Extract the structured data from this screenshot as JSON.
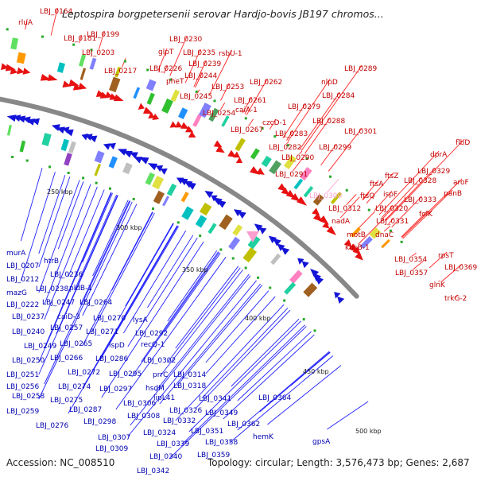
{
  "title": "Leptospira borgpetersenii serovar Hardjo-bovis JB197 chromos...",
  "footer": {
    "accession": "Accession: NC_008510",
    "topology": "Topology: circular;",
    "length": "Length: 3,576,473 bp;",
    "genes": "Genes: 2,687"
  },
  "colors": {
    "forward_strand": "#e81212",
    "reverse_strand": "#1414d8",
    "highlight_gene": "#ff9fd0",
    "backbone": "#888888",
    "label_forward": "#c00000",
    "label_reverse": "#0000b0",
    "label_highlight": "#ff9fd0"
  },
  "scale_ticks": [
    "250 kbp",
    "300 kbp",
    "350 kbp",
    "400 kbp",
    "450 kbp",
    "500 kbp"
  ],
  "forward_genes": [
    "LBJ_0164",
    "rluA",
    "LBJ_0181",
    "LBJ_0199",
    "LBJ_0203",
    "LBJ_0217",
    "LBJ_0230",
    "glpT",
    "LBJ_0235",
    "rsbU-1",
    "LBJ_0226",
    "LBJ_0239",
    "LBJ_0244",
    "pheT",
    "LBJ_0245",
    "LBJ_0253",
    "LBJ_0254",
    "LBJ_0262",
    "LBJ_0261",
    "caiA-1",
    "LBJ_0267",
    "czcD-1",
    "LBJ_0279",
    "nlpD",
    "LBJ_0284",
    "LBJ_0289",
    "LBJ_0288",
    "LBJ_0283",
    "LBJ_0282",
    "LBJ_0290",
    "LBJ_0291",
    "LBJ_0301",
    "LBJ_0299",
    "ftsZ",
    "ftsA",
    "ftsQ",
    "ispF",
    "LBJ_0312",
    "LBJ_0320",
    "nadA",
    "LBJ_0331",
    "motB",
    "dnaC",
    "kdsB-1",
    "LBJ_0354",
    "LBJ_0357",
    "rpsT",
    "LBJ_0369",
    "glnK",
    "trkG-2",
    "flbD",
    "dprA",
    "LBJ_0329",
    "LBJ_0328",
    "aroF",
    "LBJ_0333",
    "panB",
    "folK"
  ],
  "highlight_genes": [
    "LBJ_0300"
  ],
  "reverse_genes": [
    "murA",
    "LBJ_0207",
    "htrB",
    "LBJ_0212",
    "LBJ_0236",
    "mazG",
    "LBJ_0238",
    "pldB-1",
    "LBJ_0222",
    "LBJ_0247",
    "LBJ_0264",
    "LBJ_0237",
    "caiD-3",
    "LBJ_0270",
    "lysA",
    "LBJ_0257",
    "LBJ_0271",
    "LBJ_0292",
    "LBJ_0240",
    "LBJ_0265",
    "ispD",
    "recQ-1",
    "LBJ_0249",
    "LBJ_0266",
    "LBJ_0286",
    "LBJ_0302",
    "LBJ_0250",
    "LBJ_0272",
    "LBJ_0295",
    "prrC",
    "LBJ_0314",
    "LBJ_0251",
    "LBJ_0274",
    "LBJ_0297",
    "hsdM",
    "LBJ_0318",
    "LBJ_0256",
    "LBJ_0258",
    "LBJ_0275",
    "LBJ_0306",
    "lipL41",
    "LBJ_0341",
    "LBJ_0364",
    "LBJ_0259",
    "LBJ_0287",
    "LBJ_0308",
    "LBJ_0326",
    "LBJ_0349",
    "LBJ_0276",
    "LBJ_0298",
    "LBJ_0332",
    "LBJ_0362",
    "LBJ_0307",
    "LBJ_0324",
    "LBJ_0351",
    "hemK",
    "LBJ_0309",
    "LBJ_0339",
    "LBJ_0358",
    "gpsA",
    "LBJ_0340",
    "LBJ_0359",
    "LBJ_0342"
  ]
}
